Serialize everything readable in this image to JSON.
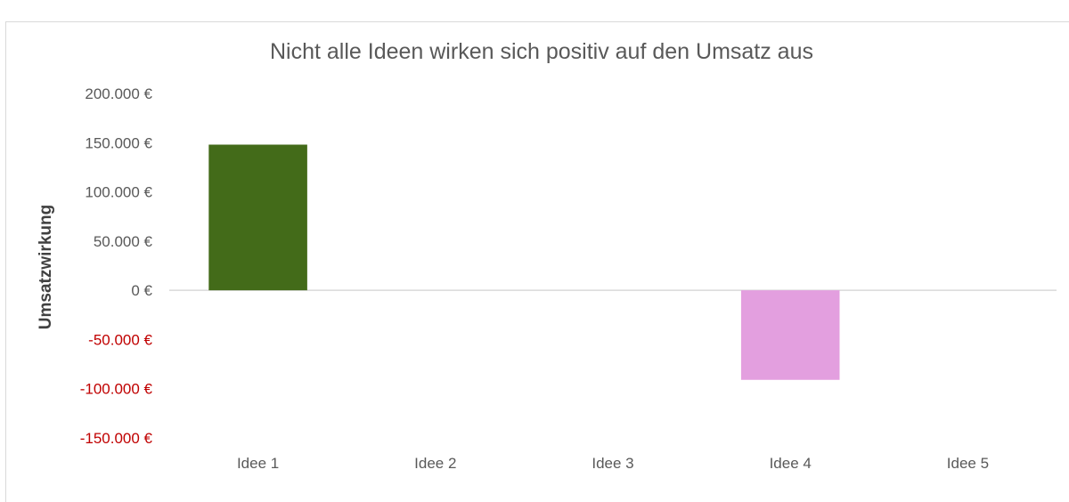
{
  "chart_data": {
    "type": "bar",
    "title": "Nicht alle Ideen wirken sich positiv auf den Umsatz aus",
    "xlabel": "",
    "ylabel": "Umsatzwirkung",
    "categories": [
      "Idee 1",
      "Idee 2",
      "Idee 3",
      "Idee 4",
      "Idee 5"
    ],
    "values": [
      148000,
      0,
      0,
      -91000,
      0
    ],
    "bar_colors": [
      "#436b19",
      "#436b19",
      "#436b19",
      "#e39fdf",
      "#436b19"
    ],
    "ylim": [
      -150000,
      200000
    ],
    "yticks": [
      200000,
      150000,
      100000,
      50000,
      0,
      -50000,
      -100000,
      -150000
    ],
    "ytick_labels": [
      "200.000 €",
      "150.000 €",
      "100.000 €",
      "50.000 €",
      "0 €",
      "-50.000 €",
      "-100.000 €",
      "-150.000 €"
    ],
    "tick_color_positive": "#595959",
    "tick_color_negative": "#c00000",
    "grid": false,
    "legend": "none",
    "zero_line_color": "#d9d9d9"
  }
}
